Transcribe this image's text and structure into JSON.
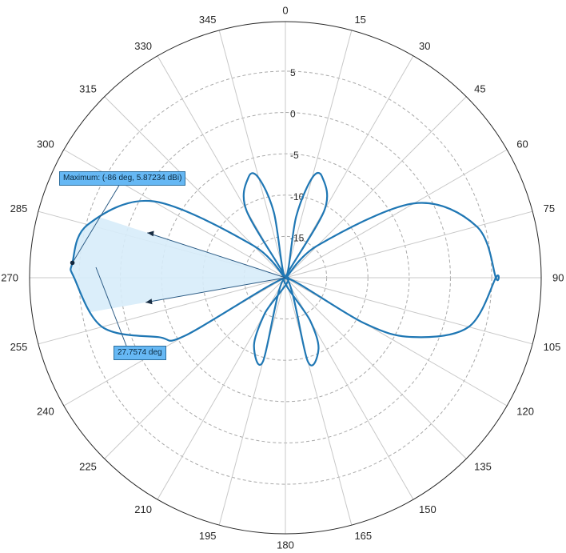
{
  "chart_data": {
    "type": "polar",
    "theta_zero_location": "top",
    "theta_direction": "clockwise",
    "theta_ticks": [
      0,
      15,
      30,
      45,
      60,
      75,
      90,
      105,
      120,
      135,
      150,
      165,
      180,
      195,
      210,
      225,
      240,
      255,
      270,
      285,
      300,
      315,
      330,
      345
    ],
    "theta_tick_labels": [
      "0",
      "15",
      "30",
      "45",
      "60",
      "75",
      "90",
      "105",
      "120",
      "135",
      "150",
      "165",
      "180",
      "195",
      "210",
      "225",
      "240",
      "255",
      "270",
      "285",
      "300",
      "315",
      "330",
      "345"
    ],
    "r_ticks": [
      5,
      0,
      -5,
      -10,
      -15
    ],
    "r_tick_labels": [
      "5",
      "0",
      "-5",
      "-10",
      "-15"
    ],
    "rlim": [
      -20,
      11
    ],
    "grid": true,
    "series": [
      {
        "color": "#1f77b4",
        "theta": [
          90,
          75,
          60,
          45,
          40,
          30,
          20,
          15,
          10,
          0,
          -10,
          -15,
          -20,
          -30,
          -40,
          -45,
          -60,
          -75,
          -86,
          -90,
          -105,
          -115,
          -120,
          -135,
          -150,
          -155,
          -165,
          -180,
          -195,
          -205,
          -210,
          -225,
          -240,
          -245,
          -255,
          -270
        ],
        "r": [
          5.5,
          4.0,
          -2.0,
          -14.5,
          -20,
          -10.5,
          -7.0,
          -7.5,
          -12.5,
          -20,
          -12.0,
          -7.5,
          -7.0,
          -10.5,
          -20,
          -14.5,
          -1.5,
          4.8,
          5.87,
          5.6,
          3.0,
          -3.0,
          -6.0,
          -20,
          -15.0,
          -11.0,
          -9.5,
          -20,
          -9.5,
          -10.5,
          -14.0,
          -20,
          -9.0,
          -3.0,
          3.0,
          5.5
        ]
      }
    ],
    "beamwidth": {
      "theta_range": [
        -100,
        -72
      ],
      "label": "27.7574 deg"
    },
    "maximum": {
      "theta": -86,
      "r": 5.87234,
      "label": "Maximum: (-86 deg, 5.87234 dBi)"
    }
  }
}
